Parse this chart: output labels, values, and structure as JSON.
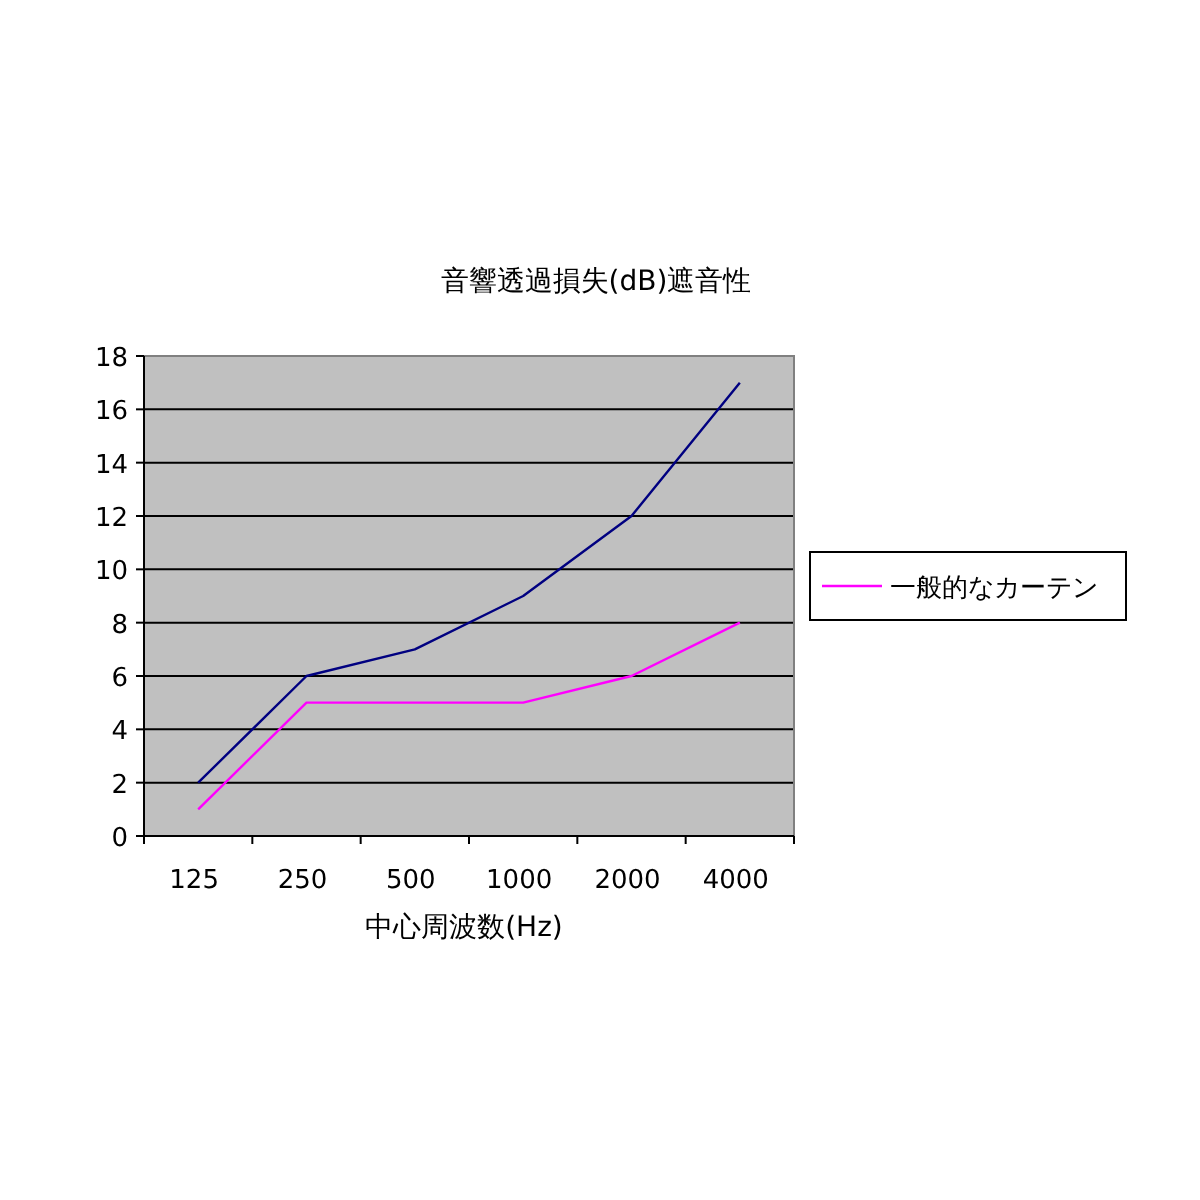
{
  "chart_data": {
    "type": "line",
    "title": "音響透過損失(dB)遮音性",
    "xlabel": "中心周波数(Hz)",
    "categories": [
      "125",
      "250",
      "500",
      "1000",
      "2000",
      "4000"
    ],
    "series": [
      {
        "color": "#000080",
        "values": [
          2,
          6,
          7,
          9,
          12,
          17
        ]
      },
      {
        "name": "一般的なカーテン",
        "color": "#ff00ff",
        "values": [
          1,
          5,
          5,
          5,
          6,
          8
        ]
      }
    ],
    "ylim": [
      0,
      18
    ],
    "yticks": [
      0,
      2,
      4,
      6,
      8,
      10,
      12,
      14,
      16,
      18
    ],
    "grid": "y",
    "legend": "right",
    "marker": "none",
    "line_style": "solid"
  }
}
